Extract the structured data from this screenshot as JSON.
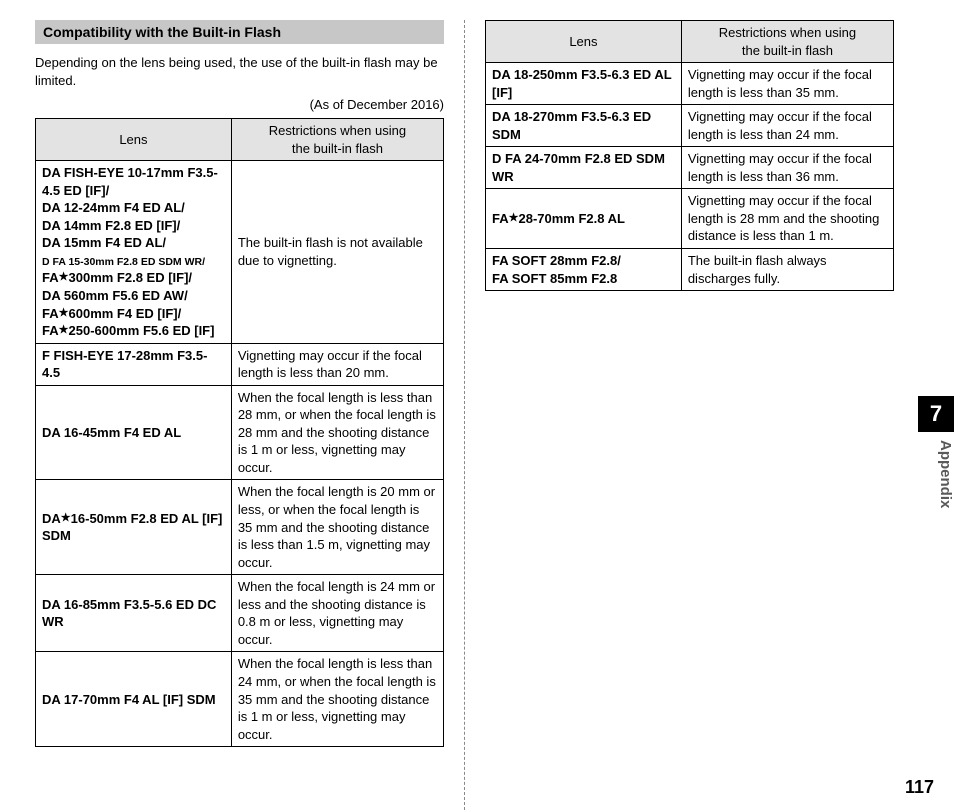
{
  "heading": "Compatibility with the Built-in Flash",
  "intro": "Depending on the lens being used, the use of the built-in flash may be limited.",
  "date_note": "(As of December 2016)",
  "table_headers": {
    "lens": "Lens",
    "restriction_l1": "Restrictions when using",
    "restriction_l2": "the built-in flash"
  },
  "left_rows": [
    {
      "lens_html": "DA FISH-EYE 10-17mm F3.5-4.5 ED [IF]/<br>DA 12-24mm F4 ED AL/<br>DA 14mm F2.8 ED [IF]/<br>DA 15mm F4 ED AL/<br><span class=\"small\">D FA 15-30mm F2.8 ED SDM WR/</span><br>FA<span class=\"star\">★</span>300mm F2.8 ED [IF]/<br>DA 560mm F5.6 ED AW/<br>FA<span class=\"star\">★</span>600mm F4 ED [IF]/<br>FA<span class=\"star\">★</span>250-600mm F5.6 ED [IF]",
      "restriction": "The built-in flash is not available due to vignetting."
    },
    {
      "lens_html": "F FISH-EYE 17-28mm F3.5-4.5",
      "restriction": "Vignetting may occur if the focal length is less than 20 mm."
    },
    {
      "lens_html": "DA 16-45mm F4 ED AL",
      "restriction": "When the focal length is less than 28 mm, or when the focal length is 28 mm and the shooting distance is 1 m or less, vignetting may occur."
    },
    {
      "lens_html": "DA<span class=\"star\">★</span>16-50mm F2.8 ED AL [IF] SDM",
      "restriction": "When the focal length is 20 mm or less, or when the focal length is 35 mm and the shooting distance is less than 1.5 m, vignetting may occur."
    },
    {
      "lens_html": "DA 16-85mm F3.5-5.6 ED DC WR",
      "restriction": "When the focal length is 24 mm or less and the shooting distance is 0.8 m or less, vignetting may occur."
    },
    {
      "lens_html": "DA 17-70mm F4 AL [IF] SDM",
      "restriction": "When the focal length is less than 24 mm, or when the focal length is 35 mm and the shooting distance is 1 m or less, vignetting may occur."
    }
  ],
  "right_rows": [
    {
      "lens_html": "DA 18-250mm F3.5-6.3 ED AL [IF]",
      "restriction": "Vignetting may occur if the focal length is less than 35 mm."
    },
    {
      "lens_html": "DA 18-270mm F3.5-6.3 ED SDM",
      "restriction": "Vignetting may occur if the focal length is less than 24 mm."
    },
    {
      "lens_html": "D FA 24-70mm F2.8 ED SDM WR",
      "restriction": "Vignetting may occur if the focal length is less than 36 mm."
    },
    {
      "lens_html": "FA<span class=\"star\">★</span>28-70mm F2.8 AL",
      "restriction": "Vignetting may occur if the focal length is 28 mm and the shooting distance is less than 1 m."
    },
    {
      "lens_html": "FA SOFT 28mm F2.8/<br>FA SOFT 85mm F2.8",
      "restriction": "The built-in flash always discharges fully."
    }
  ],
  "side_tab": {
    "number": "7",
    "label": "Appendix"
  },
  "page_number": "117"
}
